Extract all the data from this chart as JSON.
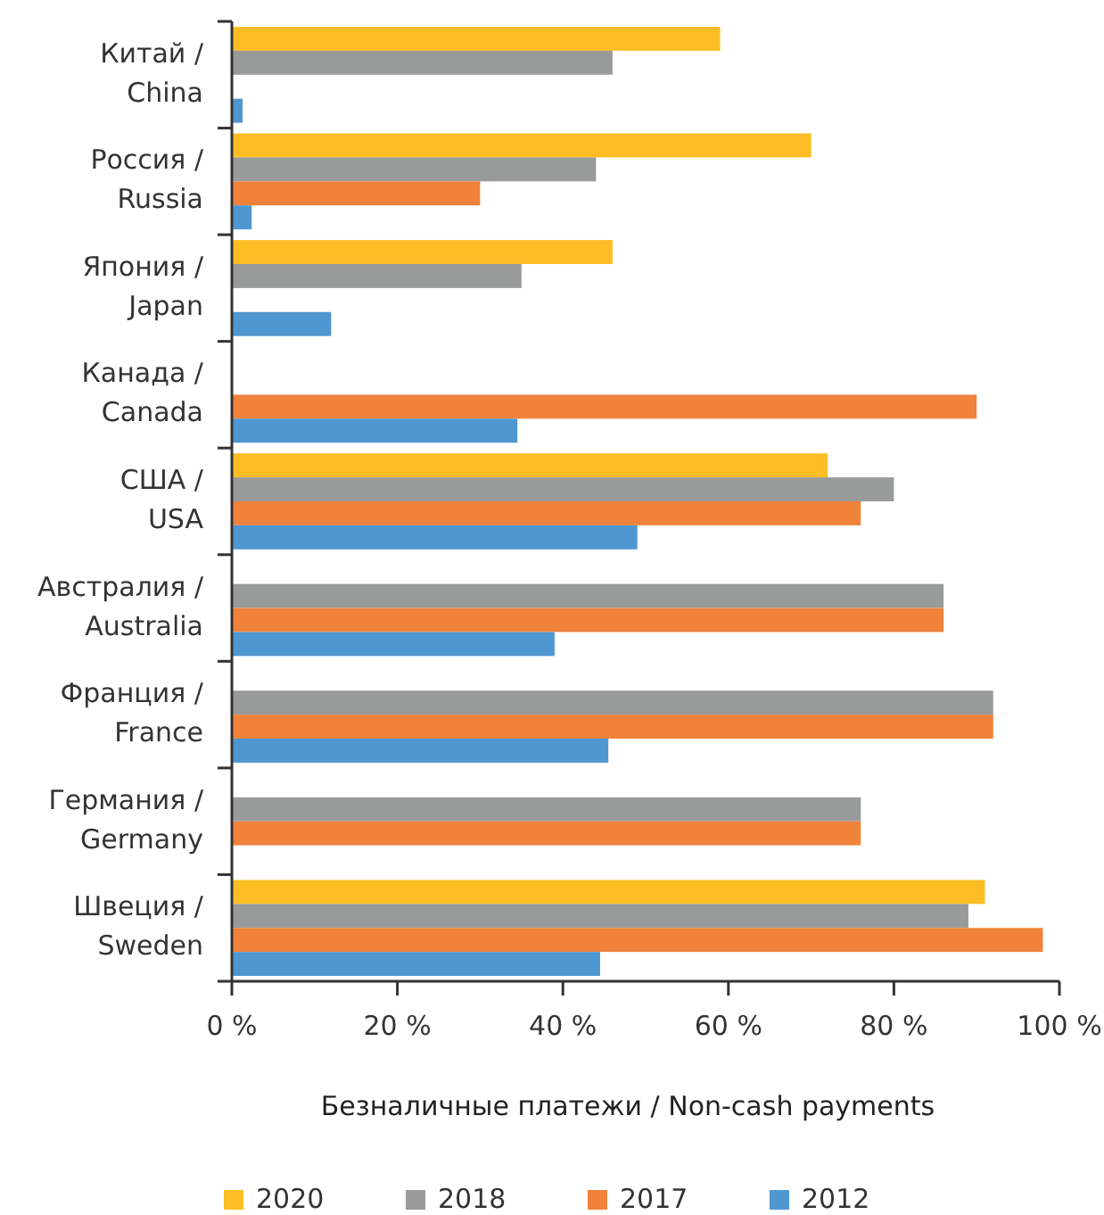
{
  "chart_data": {
    "type": "bar",
    "orientation": "horizontal",
    "xlabel": "Безналичные платежи / Non-cash payments",
    "categories": [
      "Китай / China",
      "Россия / Russia",
      "Япония / Japan",
      "Канада / Canada",
      "США / USA",
      "Австралия / Australia",
      "Франция / France",
      "Германия / Germany",
      "Швеция / Sweden"
    ],
    "series": [
      {
        "name": "2020",
        "color": "#fdbd24",
        "values": [
          59,
          70,
          46,
          null,
          72,
          null,
          null,
          null,
          91
        ]
      },
      {
        "name": "2018",
        "color": "#999b9b",
        "values": [
          46,
          44,
          35,
          null,
          80,
          86,
          92,
          76,
          89
        ]
      },
      {
        "name": "2017",
        "color": "#f0823b",
        "values": [
          null,
          30,
          null,
          90,
          76,
          86,
          92,
          76,
          98
        ]
      },
      {
        "name": "2012",
        "color": "#4f97d1",
        "values": [
          1.3,
          2.4,
          12,
          34.5,
          49,
          39,
          45.5,
          null,
          44.5
        ]
      }
    ],
    "xlim": [
      0,
      100
    ],
    "xticks": [
      {
        "value": 0,
        "label": "0 %"
      },
      {
        "value": 20,
        "label": "20 %"
      },
      {
        "value": 40,
        "label": "40 %"
      },
      {
        "value": 60,
        "label": "60 %"
      },
      {
        "value": 80,
        "label": "80 %"
      },
      {
        "value": 100,
        "label": "100 %"
      }
    ],
    "grid": false,
    "legend": "bottom"
  }
}
